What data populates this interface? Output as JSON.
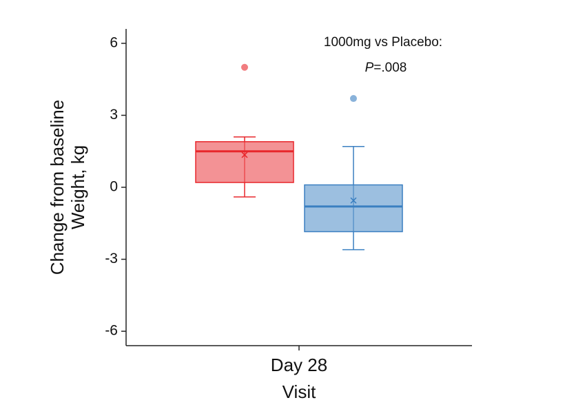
{
  "chart_data": {
    "type": "box",
    "categories": [
      "Day 28"
    ],
    "x_label": "Visit",
    "y_label": [
      "Change from baseline",
      "Weight, kg"
    ],
    "annotation": {
      "line1": "1000mg vs Placebo:",
      "p_symbol": "P",
      "p_value": "=.008"
    },
    "ylim": [
      -6.6,
      6.6
    ],
    "yticks": [
      -6,
      -3,
      0,
      3,
      6
    ],
    "series": [
      {
        "color": "#e8262b",
        "whisker_low": -0.4,
        "q1": 0.2,
        "median": 1.5,
        "q3": 1.9,
        "whisker_high": 2.1,
        "mean": 1.35,
        "outliers": [
          5.0
        ]
      },
      {
        "color": "#3a7fc1",
        "whisker_low": -2.6,
        "q1": -1.85,
        "median": -0.8,
        "q3": 0.1,
        "whisker_high": 1.7,
        "mean": -0.55,
        "outliers": [
          3.7
        ]
      }
    ]
  }
}
